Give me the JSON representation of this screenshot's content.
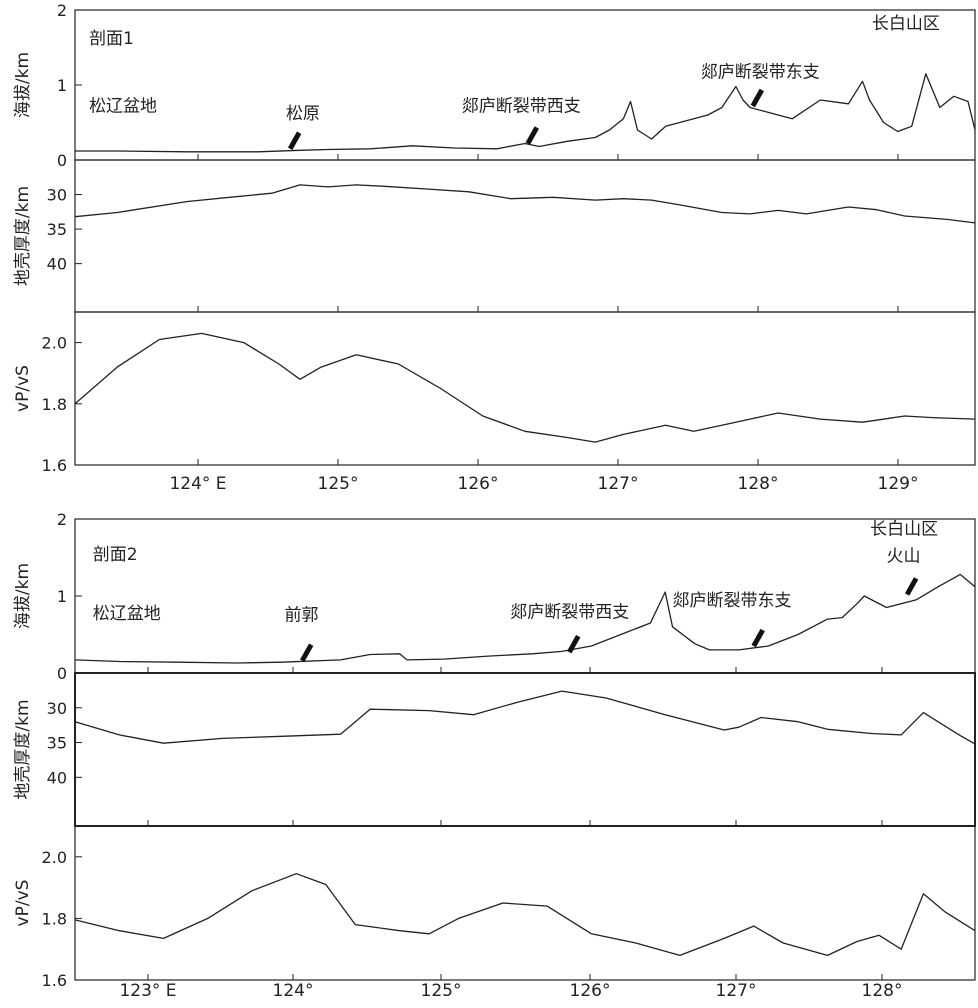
{
  "chart_data": [
    {
      "type": "line",
      "panel_group": "剖面1",
      "x_unit_label": "E",
      "xlim": [
        123.2,
        129.6
      ],
      "x_ticks": [
        "124° E",
        "125°",
        "126°",
        "127°",
        "128°",
        "129°"
      ],
      "panels": [
        {
          "ylabel": "海拔/km",
          "ylim": [
            0,
            2
          ],
          "y_ticks": [
            "0",
            "1",
            "2"
          ],
          "series": [
            {
              "x": [
                123.2,
                123.5,
                124.0,
                124.5,
                124.8,
                125.0,
                125.3,
                125.6,
                125.9,
                126.2,
                126.4,
                126.5,
                126.7,
                126.9,
                127.0,
                127.1,
                127.15,
                127.2,
                127.3,
                127.4,
                127.5,
                127.6,
                127.7,
                127.8,
                127.9,
                127.95,
                128.0,
                128.1,
                128.3,
                128.5,
                128.7,
                128.8,
                128.85,
                128.95,
                129.05,
                129.15,
                129.25,
                129.35,
                129.45,
                129.55,
                129.6
              ],
              "y": [
                0.12,
                0.12,
                0.11,
                0.11,
                0.13,
                0.14,
                0.15,
                0.19,
                0.16,
                0.15,
                0.22,
                0.18,
                0.25,
                0.3,
                0.4,
                0.55,
                0.78,
                0.4,
                0.28,
                0.45,
                0.5,
                0.55,
                0.6,
                0.7,
                0.98,
                0.8,
                0.7,
                0.65,
                0.55,
                0.8,
                0.75,
                1.05,
                0.8,
                0.5,
                0.38,
                0.45,
                1.15,
                0.7,
                0.85,
                0.78,
                0.4
              ]
            }
          ],
          "annotations": [
            {
              "text": "剖面1",
              "x": 123.3,
              "y": 1.55,
              "anchor": "start"
            },
            {
              "text": "长白山区",
              "x": 129.35,
              "y": 1.75,
              "anchor": "end"
            },
            {
              "text": "松辽盆地",
              "x": 123.3,
              "y": 0.65,
              "anchor": "start"
            },
            {
              "text": "松原",
              "x": 124.7,
              "y": 0.55,
              "anchor": "start"
            },
            {
              "text": "郯庐断裂带西支",
              "x": 125.95,
              "y": 0.65,
              "anchor": "start"
            },
            {
              "text": "郯庐断裂带东支",
              "x": 127.65,
              "y": 1.1,
              "anchor": "start"
            }
          ],
          "markers": [
            {
              "x": 124.73,
              "y": 0.15
            },
            {
              "x": 126.42,
              "y": 0.22
            },
            {
              "x": 128.02,
              "y": 0.72
            }
          ]
        },
        {
          "ylabel": "地壳厚度/km",
          "ylim": [
            47,
            25
          ],
          "y_ticks": [
            "30",
            "35",
            "40"
          ],
          "series": [
            {
              "x": [
                123.2,
                123.5,
                124.0,
                124.3,
                124.6,
                124.8,
                125.0,
                125.2,
                125.4,
                125.7,
                126.0,
                126.3,
                126.6,
                126.9,
                127.1,
                127.3,
                127.5,
                127.8,
                128.0,
                128.2,
                128.4,
                128.7,
                128.9,
                129.1,
                129.4,
                129.6
              ],
              "y": [
                33.2,
                32.6,
                31.0,
                30.4,
                29.8,
                28.6,
                28.9,
                28.6,
                28.8,
                29.2,
                29.6,
                30.6,
                30.4,
                30.8,
                30.6,
                30.8,
                31.5,
                32.6,
                32.8,
                32.3,
                32.8,
                31.8,
                32.2,
                33.1,
                33.6,
                34.1
              ]
            }
          ]
        },
        {
          "ylabel": "vP/vS",
          "ylim": [
            1.6,
            2.1
          ],
          "y_ticks": [
            "1.6",
            "1.8",
            "2.0"
          ],
          "series": [
            {
              "x": [
                123.2,
                123.5,
                123.8,
                124.1,
                124.4,
                124.65,
                124.8,
                124.95,
                125.2,
                125.5,
                125.8,
                126.1,
                126.4,
                126.7,
                126.9,
                127.1,
                127.4,
                127.6,
                127.8,
                128.0,
                128.2,
                128.5,
                128.8,
                129.1,
                129.3,
                129.6
              ],
              "y": [
                1.8,
                1.92,
                2.01,
                2.03,
                2.0,
                1.93,
                1.88,
                1.92,
                1.96,
                1.93,
                1.85,
                1.76,
                1.71,
                1.69,
                1.675,
                1.7,
                1.73,
                1.71,
                1.73,
                1.75,
                1.77,
                1.75,
                1.74,
                1.76,
                1.755,
                1.75
              ]
            }
          ]
        }
      ]
    },
    {
      "type": "line",
      "panel_group": "剖面2",
      "x_unit_label": "E",
      "xlim": [
        122.5,
        128.6
      ],
      "x_ticks": [
        "123° E",
        "124°",
        "125°",
        "126°",
        "127°",
        "128°"
      ],
      "panels": [
        {
          "ylabel": "海拔/km",
          "ylim": [
            0,
            2
          ],
          "y_ticks": [
            "0",
            "1",
            "2"
          ],
          "series": [
            {
              "x": [
                122.5,
                122.8,
                123.2,
                123.6,
                123.9,
                124.3,
                124.5,
                124.7,
                124.75,
                125.0,
                125.3,
                125.6,
                125.8,
                126.0,
                126.2,
                126.4,
                126.5,
                126.55,
                126.7,
                126.8,
                127.0,
                127.2,
                127.4,
                127.6,
                127.7,
                127.8,
                127.85,
                128.0,
                128.2,
                128.35,
                128.5,
                128.6
              ],
              "y": [
                0.17,
                0.15,
                0.14,
                0.13,
                0.14,
                0.17,
                0.24,
                0.25,
                0.17,
                0.18,
                0.22,
                0.25,
                0.28,
                0.35,
                0.5,
                0.65,
                1.05,
                0.6,
                0.38,
                0.3,
                0.3,
                0.35,
                0.5,
                0.7,
                0.72,
                0.9,
                1.0,
                0.85,
                0.95,
                1.12,
                1.28,
                1.12
              ]
            }
          ],
          "annotations": [
            {
              "text": "剖面2",
              "x": 122.62,
              "y": 1.47,
              "anchor": "start"
            },
            {
              "text": "长白山区",
              "x": 128.35,
              "y": 1.8,
              "anchor": "end"
            },
            {
              "text": "火山",
              "x": 128.0,
              "y": 1.45,
              "anchor": "start"
            },
            {
              "text": "松辽盆地",
              "x": 122.62,
              "y": 0.7,
              "anchor": "start"
            },
            {
              "text": "前郭",
              "x": 123.92,
              "y": 0.68,
              "anchor": "start"
            },
            {
              "text": "郯庐断裂带西支",
              "x": 125.45,
              "y": 0.72,
              "anchor": "start"
            },
            {
              "text": "郯庐断裂带东支",
              "x": 126.55,
              "y": 0.87,
              "anchor": "start"
            }
          ],
          "markers": [
            {
              "x": 124.04,
              "y": 0.16
            },
            {
              "x": 125.85,
              "y": 0.27
            },
            {
              "x": 127.1,
              "y": 0.35
            },
            {
              "x": 128.14,
              "y": 1.02
            }
          ]
        },
        {
          "ylabel": "地壳厚度/km",
          "ylim": [
            47,
            25
          ],
          "y_ticks": [
            "30",
            "35",
            "40"
          ],
          "series": [
            {
              "x": [
                122.5,
                122.8,
                123.1,
                123.5,
                123.9,
                124.3,
                124.5,
                124.9,
                125.2,
                125.5,
                125.8,
                126.1,
                126.5,
                126.9,
                127.0,
                127.15,
                127.4,
                127.6,
                127.9,
                128.1,
                128.25,
                128.5,
                128.6
              ],
              "y": [
                32.0,
                33.9,
                35.1,
                34.4,
                34.1,
                33.8,
                30.2,
                30.4,
                31.0,
                29.2,
                27.6,
                28.6,
                31.0,
                33.2,
                32.8,
                31.4,
                32.0,
                33.1,
                33.7,
                33.9,
                30.7,
                34.0,
                35.2
              ]
            }
          ]
        },
        {
          "ylabel": "vP/vS",
          "ylim": [
            1.6,
            2.1
          ],
          "y_ticks": [
            "1.6",
            "1.8",
            "2.0"
          ],
          "series": [
            {
              "x": [
                122.5,
                122.8,
                123.1,
                123.4,
                123.7,
                124.0,
                124.2,
                124.4,
                124.7,
                124.9,
                125.1,
                125.4,
                125.7,
                126.0,
                126.3,
                126.6,
                126.9,
                127.1,
                127.3,
                127.6,
                127.8,
                127.95,
                128.1,
                128.25,
                128.4,
                128.6
              ],
              "y": [
                1.795,
                1.76,
                1.735,
                1.8,
                1.89,
                1.945,
                1.91,
                1.78,
                1.76,
                1.75,
                1.8,
                1.85,
                1.84,
                1.75,
                1.72,
                1.68,
                1.735,
                1.775,
                1.72,
                1.68,
                1.725,
                1.745,
                1.7,
                1.88,
                1.82,
                1.76
              ]
            }
          ]
        }
      ]
    }
  ]
}
